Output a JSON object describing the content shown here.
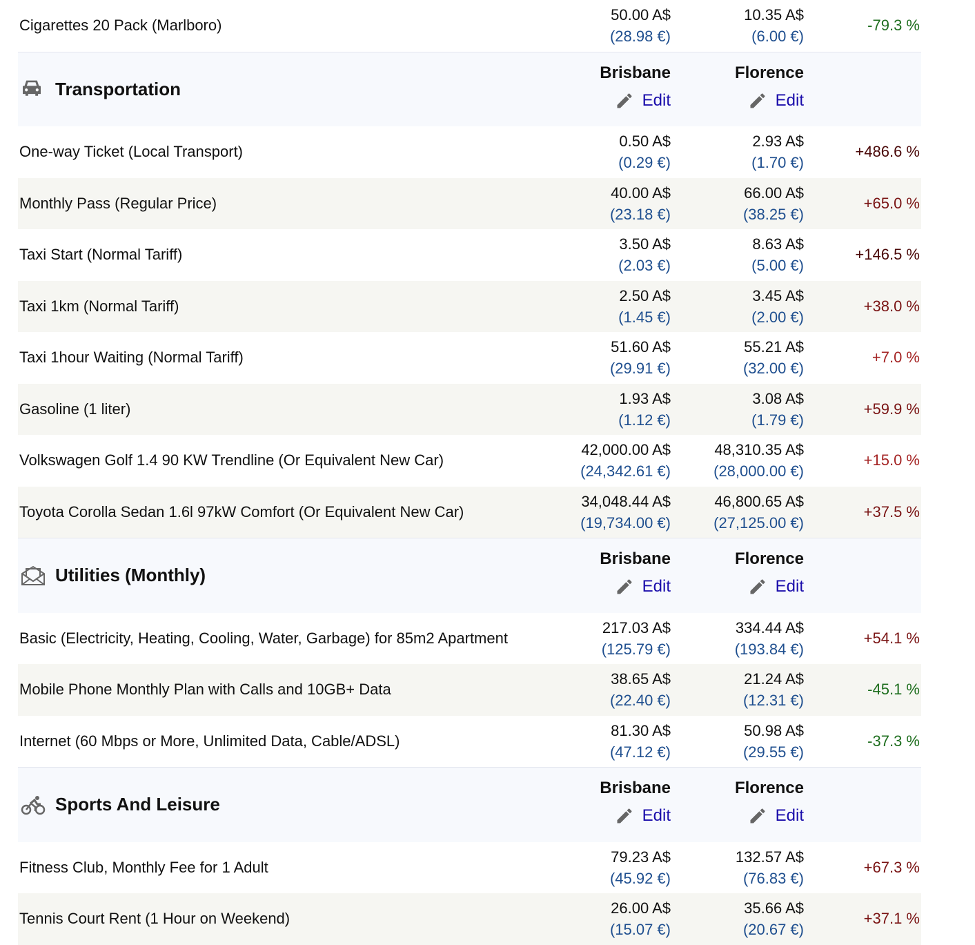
{
  "city1": "Brisbane",
  "city2": "Florence",
  "edit_label": "Edit",
  "colors": {
    "neg": "#1e6e1e",
    "pos_high": "#4a0808",
    "pos_mid": "#7a1414",
    "pos_low": "#a52525",
    "eur": "#1f4f8f",
    "link": "#1a0dab"
  },
  "sections": [
    {
      "title": null,
      "icon": null,
      "rows": [
        {
          "name": "Cigarettes 20 Pack (Marlboro)",
          "a1": "50.00 A$",
          "e1": "(28.98 €)",
          "a2": "10.35 A$",
          "e2": "(6.00 €)",
          "pct": "-79.3 %"
        }
      ]
    },
    {
      "title": "Transportation",
      "icon": "car-icon",
      "rows": [
        {
          "name": "One-way Ticket (Local Transport)",
          "a1": "0.50 A$",
          "e1": "(0.29 €)",
          "a2": "2.93 A$",
          "e2": "(1.70 €)",
          "pct": "+486.6 %"
        },
        {
          "name": "Monthly Pass (Regular Price)",
          "a1": "40.00 A$",
          "e1": "(23.18 €)",
          "a2": "66.00 A$",
          "e2": "(38.25 €)",
          "pct": "+65.0 %"
        },
        {
          "name": "Taxi Start (Normal Tariff)",
          "a1": "3.50 A$",
          "e1": "(2.03 €)",
          "a2": "8.63 A$",
          "e2": "(5.00 €)",
          "pct": "+146.5 %"
        },
        {
          "name": "Taxi 1km (Normal Tariff)",
          "a1": "2.50 A$",
          "e1": "(1.45 €)",
          "a2": "3.45 A$",
          "e2": "(2.00 €)",
          "pct": "+38.0 %"
        },
        {
          "name": "Taxi 1hour Waiting (Normal Tariff)",
          "a1": "51.60 A$",
          "e1": "(29.91 €)",
          "a2": "55.21 A$",
          "e2": "(32.00 €)",
          "pct": "+7.0 %"
        },
        {
          "name": "Gasoline (1 liter)",
          "a1": "1.93 A$",
          "e1": "(1.12 €)",
          "a2": "3.08 A$",
          "e2": "(1.79 €)",
          "pct": "+59.9 %"
        },
        {
          "name": "Volkswagen Golf 1.4 90 KW Trendline (Or Equivalent New Car)",
          "a1": "42,000.00 A$",
          "e1": "(24,342.61 €)",
          "a2": "48,310.35 A$",
          "e2": "(28,000.00 €)",
          "pct": "+15.0 %"
        },
        {
          "name": "Toyota Corolla Sedan 1.6l 97kW Comfort (Or Equivalent New Car)",
          "a1": "34,048.44 A$",
          "e1": "(19,734.00 €)",
          "a2": "46,800.65 A$",
          "e2": "(27,125.00 €)",
          "pct": "+37.5 %"
        }
      ]
    },
    {
      "title": "Utilities (Monthly)",
      "icon": "envelope-open-icon",
      "rows": [
        {
          "name": "Basic (Electricity, Heating, Cooling, Water, Garbage) for 85m2 Apartment",
          "a1": "217.03 A$",
          "e1": "(125.79 €)",
          "a2": "334.44 A$",
          "e2": "(193.84 €)",
          "pct": "+54.1 %"
        },
        {
          "name": "Mobile Phone Monthly Plan with Calls and 10GB+ Data",
          "a1": "38.65 A$",
          "e1": "(22.40 €)",
          "a2": "21.24 A$",
          "e2": "(12.31 €)",
          "pct": "-45.1 %"
        },
        {
          "name": "Internet (60 Mbps or More, Unlimited Data, Cable/ADSL)",
          "a1": "81.30 A$",
          "e1": "(47.12 €)",
          "a2": "50.98 A$",
          "e2": "(29.55 €)",
          "pct": "-37.3 %"
        }
      ]
    },
    {
      "title": "Sports And Leisure",
      "icon": "bicycle-icon",
      "rows": [
        {
          "name": "Fitness Club, Monthly Fee for 1 Adult",
          "a1": "79.23 A$",
          "e1": "(45.92 €)",
          "a2": "132.57 A$",
          "e2": "(76.83 €)",
          "pct": "+67.3 %"
        },
        {
          "name": "Tennis Court Rent (1 Hour on Weekend)",
          "a1": "26.00 A$",
          "e1": "(15.07 €)",
          "a2": "35.66 A$",
          "e2": "(20.67 €)",
          "pct": "+37.1 %"
        }
      ]
    }
  ]
}
